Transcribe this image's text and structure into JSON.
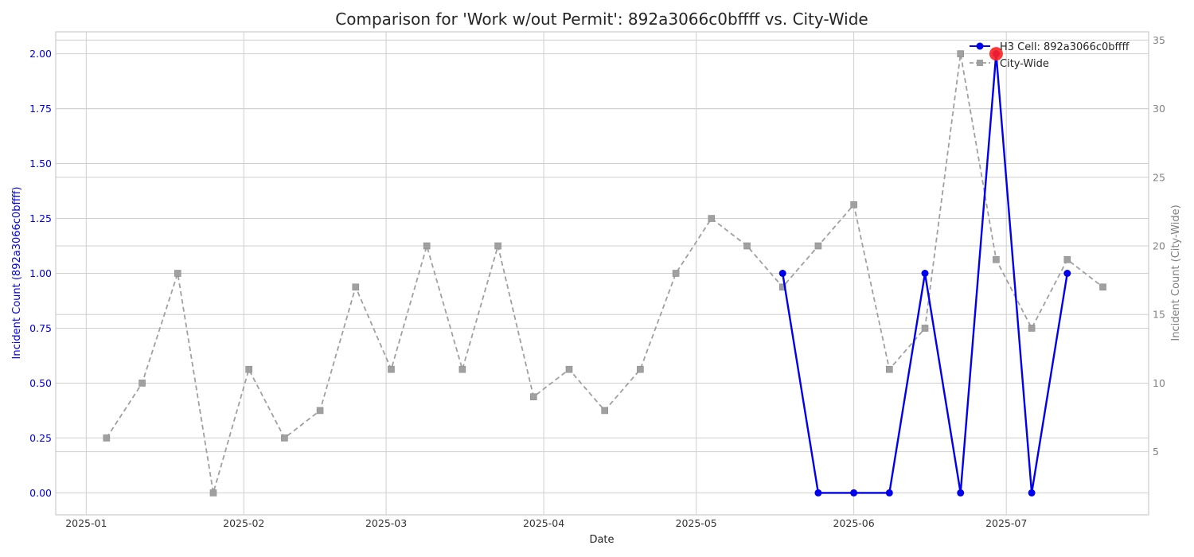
{
  "chart_data": {
    "type": "line",
    "title": "Comparison for 'Work w/out Permit': 892a3066c0bffff vs. City-Wide",
    "xlabel": "Date",
    "ylabel_left": "Incident Count (892a3066c0bffff)",
    "ylabel_right": "Incident Count (City-Wide)",
    "x_ticks": [
      "2025-01",
      "2025-02",
      "2025-03",
      "2025-04",
      "2025-05",
      "2025-06",
      "2025-07"
    ],
    "x_tick_dates": [
      "2025-01-01",
      "2025-02-01",
      "2025-03-01",
      "2025-04-01",
      "2025-05-01",
      "2025-06-01",
      "2025-07-01"
    ],
    "xlim": [
      "2024-12-26",
      "2025-07-29"
    ],
    "y_left_ticks": [
      "0.00",
      "0.25",
      "0.50",
      "0.75",
      "1.00",
      "1.25",
      "1.50",
      "1.75",
      "2.00"
    ],
    "y_left_lim": [
      -0.1,
      2.1
    ],
    "y_right_ticks": [
      "5",
      "10",
      "15",
      "20",
      "25",
      "30",
      "35"
    ],
    "y_right_lim": [
      0.4,
      35.6
    ],
    "grid": true,
    "legend_position": "top-right",
    "series": [
      {
        "name": "H3 Cell: 892a3066c0bffff",
        "axis": "left",
        "color": "#0000ee",
        "style": "solid",
        "marker": "circle",
        "x": [
          "2025-05-18",
          "2025-05-25",
          "2025-06-01",
          "2025-06-08",
          "2025-06-15",
          "2025-06-22",
          "2025-06-29",
          "2025-07-06",
          "2025-07-13"
        ],
        "y": [
          1,
          0,
          0,
          0,
          1,
          0,
          2,
          0,
          1
        ]
      },
      {
        "name": "City-Wide",
        "axis": "right",
        "color": "#a0a0a0",
        "style": "dashed",
        "marker": "square",
        "x": [
          "2025-01-05",
          "2025-01-12",
          "2025-01-19",
          "2025-01-26",
          "2025-02-02",
          "2025-02-09",
          "2025-02-16",
          "2025-02-23",
          "2025-03-02",
          "2025-03-09",
          "2025-03-16",
          "2025-03-23",
          "2025-03-30",
          "2025-04-06",
          "2025-04-13",
          "2025-04-20",
          "2025-04-27",
          "2025-05-04",
          "2025-05-11",
          "2025-05-18",
          "2025-05-25",
          "2025-06-01",
          "2025-06-08",
          "2025-06-15",
          "2025-06-22",
          "2025-06-29",
          "2025-07-06",
          "2025-07-13",
          "2025-07-20"
        ],
        "y": [
          6,
          10,
          18,
          2,
          11,
          6,
          8,
          17,
          11,
          20,
          11,
          20,
          9,
          11,
          8,
          11,
          18,
          22,
          20,
          17,
          20,
          23,
          11,
          14,
          34,
          19,
          14,
          19,
          17
        ]
      }
    ],
    "highlight": {
      "series": "H3 Cell: 892a3066c0bffff",
      "x": "2025-06-29",
      "y": 2,
      "color": "#ff2020"
    }
  }
}
